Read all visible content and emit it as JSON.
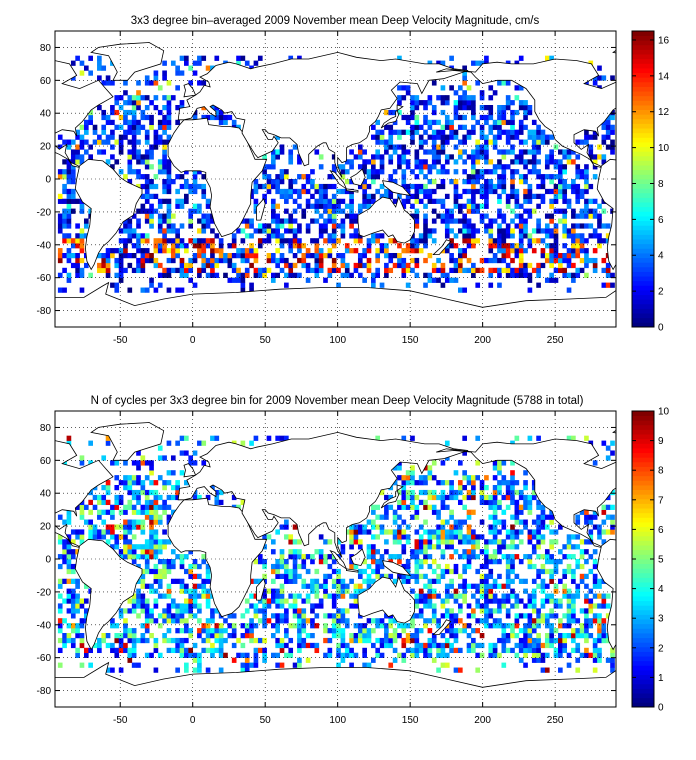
{
  "chart_data": [
    {
      "type": "heatmap",
      "title": "3x3 degree bin–averaged 2009 November mean Deep Velocity Magnitude, cm/s",
      "xlabel": "",
      "ylabel": "",
      "xlim": [
        -95,
        292
      ],
      "ylim": [
        -90,
        90
      ],
      "x_ticks": [
        -50,
        0,
        50,
        100,
        150,
        200,
        250
      ],
      "y_ticks": [
        80,
        60,
        40,
        20,
        0,
        -20,
        -40,
        -60,
        -80
      ],
      "grid": true,
      "grid_style": "dotted",
      "colorbar": {
        "min": 0,
        "max": 16.5,
        "ticks": [
          0,
          2,
          4,
          6,
          8,
          10,
          12,
          14,
          16
        ],
        "colormap": "jet"
      },
      "bin_size_deg": 3,
      "typical_value_range": [
        0,
        16.5
      ]
    },
    {
      "type": "heatmap",
      "title": "N of cycles per 3x3 degree bin for 2009 November mean Deep Velocity Magnitude (5788 in total)",
      "xlabel": "",
      "ylabel": "",
      "xlim": [
        -95,
        292
      ],
      "ylim": [
        -90,
        90
      ],
      "x_ticks": [
        -50,
        0,
        50,
        100,
        150,
        200,
        250
      ],
      "y_ticks": [
        80,
        60,
        40,
        20,
        0,
        -20,
        -40,
        -60,
        -80
      ],
      "grid": true,
      "grid_style": "dotted",
      "colorbar": {
        "min": 0,
        "max": 10,
        "ticks": [
          0,
          1,
          2,
          3,
          4,
          5,
          6,
          7,
          8,
          9,
          10
        ],
        "colormap": "jet"
      },
      "bin_size_deg": 3,
      "typical_value_range": [
        0,
        10
      ]
    }
  ],
  "colors": {
    "frame": "#000000",
    "grid": "#000000",
    "background": "#ffffff",
    "coastline": "#000000"
  }
}
